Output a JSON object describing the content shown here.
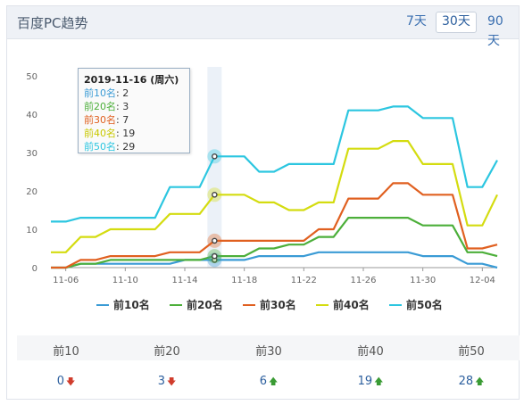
{
  "header": {
    "title": "百度PC趋势",
    "ranges": [
      "7天",
      "30天",
      "90天"
    ],
    "active_range": "30天"
  },
  "chart_data": {
    "type": "line",
    "x": [
      "11-05",
      "11-06",
      "11-07",
      "11-08",
      "11-09",
      "11-10",
      "11-11",
      "11-12",
      "11-13",
      "11-14",
      "11-15",
      "11-16",
      "11-17",
      "11-18",
      "11-19",
      "11-20",
      "11-21",
      "11-22",
      "11-23",
      "11-24",
      "11-25",
      "11-26",
      "11-27",
      "11-28",
      "11-29",
      "11-30",
      "12-01",
      "12-02",
      "12-03",
      "12-04",
      "12-05"
    ],
    "x_tick_labels": [
      "11-06",
      "11-10",
      "11-14",
      "11-18",
      "11-22",
      "11-26",
      "11-30",
      "12-04"
    ],
    "ylim": [
      0,
      50
    ],
    "y_ticks": [
      0,
      10,
      20,
      30,
      40,
      50
    ],
    "series": [
      {
        "name": "前10名",
        "color": "#3a9bd5",
        "values": [
          0,
          0,
          1,
          1,
          1,
          1,
          1,
          1,
          1,
          2,
          2,
          2,
          2,
          2,
          3,
          3,
          3,
          3,
          4,
          4,
          4,
          4,
          4,
          4,
          4,
          3,
          3,
          3,
          1,
          1,
          0
        ]
      },
      {
        "name": "前20名",
        "color": "#4caf3a",
        "values": [
          0,
          0,
          1,
          1,
          2,
          2,
          2,
          2,
          2,
          2,
          2,
          3,
          3,
          3,
          5,
          5,
          6,
          6,
          8,
          8,
          13,
          13,
          13,
          13,
          13,
          11,
          11,
          11,
          4,
          4,
          3
        ]
      },
      {
        "name": "前30名",
        "color": "#e06020",
        "values": [
          0,
          0,
          2,
          2,
          3,
          3,
          3,
          3,
          4,
          4,
          4,
          7,
          7,
          7,
          7,
          7,
          7,
          7,
          10,
          10,
          18,
          18,
          18,
          22,
          22,
          19,
          19,
          19,
          5,
          5,
          6
        ]
      },
      {
        "name": "前40名",
        "color": "#d4dc10",
        "values": [
          4,
          4,
          8,
          8,
          10,
          10,
          10,
          10,
          14,
          14,
          14,
          19,
          19,
          19,
          17,
          17,
          15,
          15,
          17,
          17,
          31,
          31,
          31,
          33,
          33,
          27,
          27,
          27,
          11,
          11,
          19
        ]
      },
      {
        "name": "前50名",
        "color": "#2cc6e0",
        "values": [
          12,
          12,
          13,
          13,
          13,
          13,
          13,
          13,
          21,
          21,
          21,
          29,
          29,
          29,
          25,
          25,
          27,
          27,
          27,
          27,
          41,
          41,
          41,
          42,
          42,
          39,
          39,
          39,
          21,
          21,
          28
        ]
      }
    ],
    "highlight_index": 11
  },
  "tooltip": {
    "title": "2019-11-16 (周六)",
    "rows": [
      {
        "label": "前10名",
        "value": "2",
        "color": "#3a9bd5"
      },
      {
        "label": "前20名",
        "value": "3",
        "color": "#4caf3a"
      },
      {
        "label": "前30名",
        "value": "7",
        "color": "#e06020"
      },
      {
        "label": "前40名",
        "value": "19",
        "color": "#c8c800"
      },
      {
        "label": "前50名",
        "value": "29",
        "color": "#2cc6e0"
      }
    ]
  },
  "legend": [
    "前10名",
    "前20名",
    "前30名",
    "前40名",
    "前50名"
  ],
  "summary": {
    "headers": [
      "前10",
      "前20",
      "前30",
      "前40",
      "前50"
    ],
    "values": [
      "0",
      "3",
      "6",
      "19",
      "28"
    ],
    "trends": [
      "down",
      "down",
      "up",
      "up",
      "up"
    ]
  }
}
